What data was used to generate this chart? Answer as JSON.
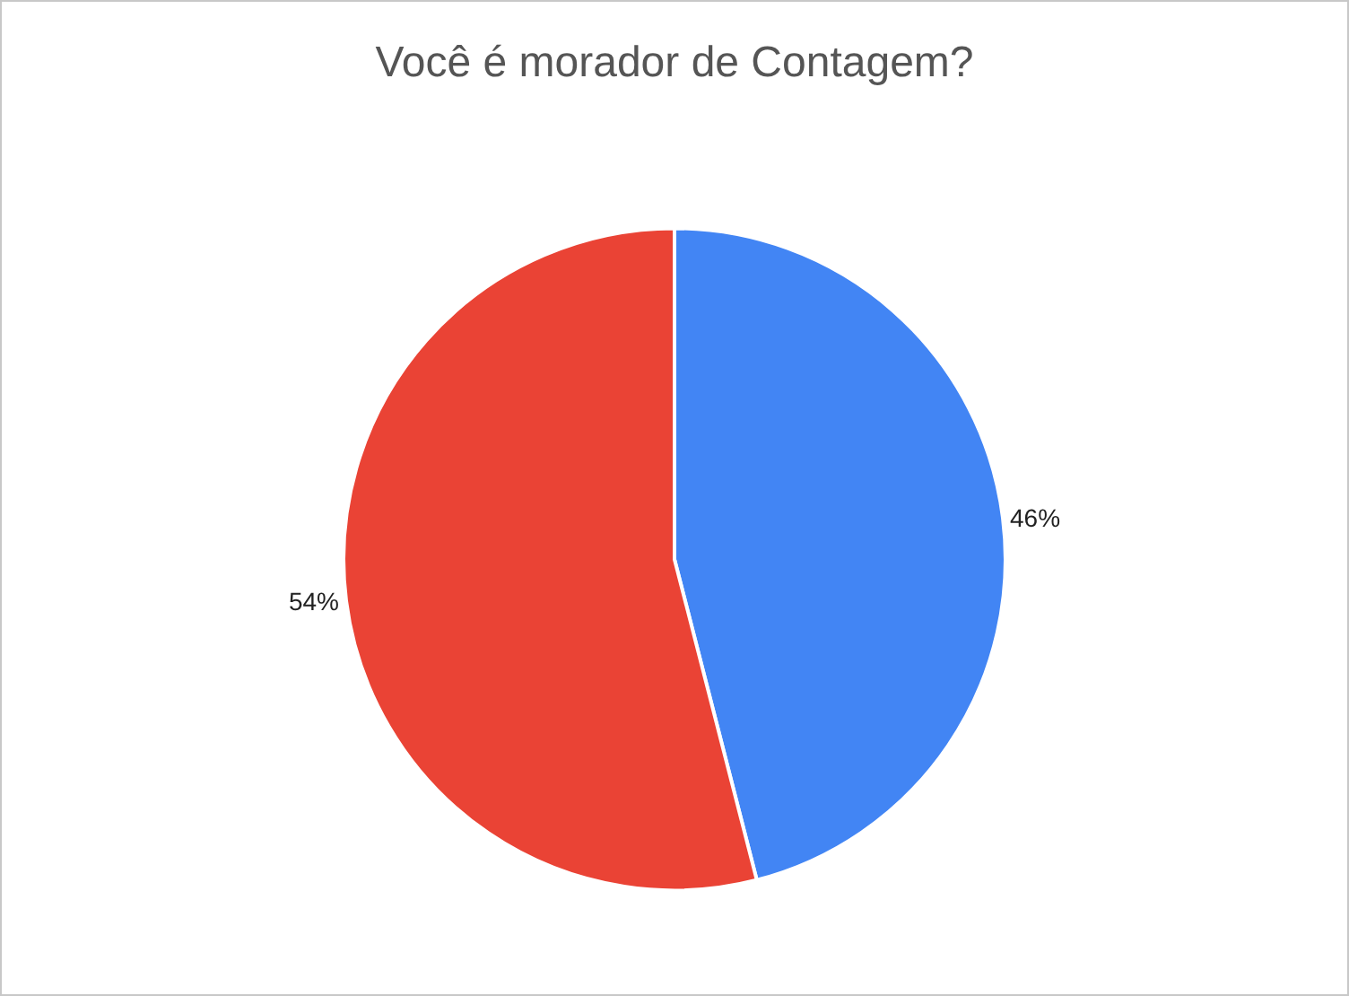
{
  "chart_data": {
    "type": "pie",
    "title": "Você é morador de Contagem?",
    "categories": [
      null,
      null
    ],
    "values": [
      46,
      54
    ],
    "colors": [
      "#4285f4",
      "#ea4335"
    ],
    "value_labels": [
      "46%",
      "54%"
    ],
    "legend": false
  }
}
